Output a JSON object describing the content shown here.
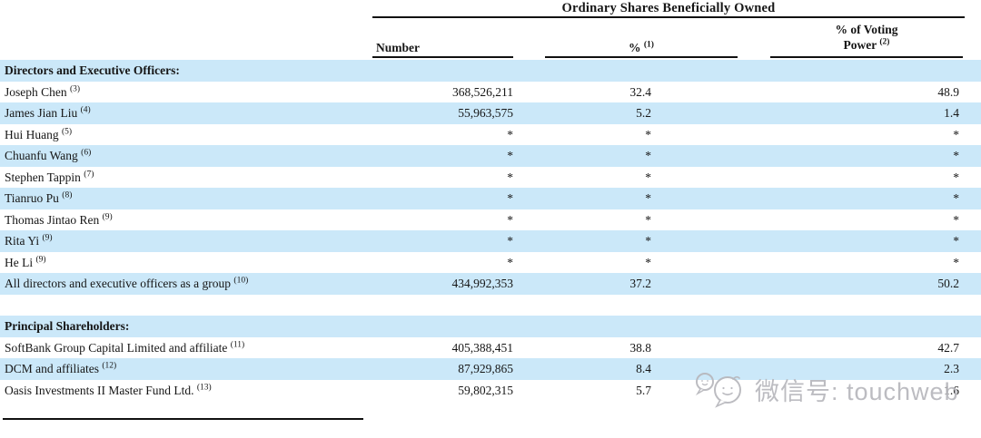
{
  "table": {
    "span_header": "Ordinary Shares Beneficially Owned",
    "columns": {
      "number": {
        "label": "Number"
      },
      "percent": {
        "label": "%",
        "sup": "(1)"
      },
      "voting": {
        "line1": "% of Voting",
        "line2": "Power",
        "sup": "(2)"
      }
    },
    "sections": [
      {
        "heading": "Directors and Executive Officers:",
        "rows": [
          {
            "name": "Joseph Chen",
            "sup": "(3)",
            "number": "368,526,211",
            "pct": "32.4",
            "voting": "48.9"
          },
          {
            "name": "James Jian Liu",
            "sup": "(4)",
            "number": "55,963,575",
            "pct": "5.2",
            "voting": "1.4"
          },
          {
            "name": "Hui Huang",
            "sup": "(5)",
            "number": "*",
            "pct": "*",
            "voting": "*"
          },
          {
            "name": "Chuanfu Wang",
            "sup": "(6)",
            "number": "*",
            "pct": "*",
            "voting": "*"
          },
          {
            "name": "Stephen Tappin",
            "sup": "(7)",
            "number": "*",
            "pct": "*",
            "voting": "*"
          },
          {
            "name": "Tianruo Pu",
            "sup": "(8)",
            "number": "*",
            "pct": "*",
            "voting": "*"
          },
          {
            "name": "Thomas Jintao Ren",
            "sup": "(9)",
            "number": "*",
            "pct": "*",
            "voting": "*"
          },
          {
            "name": "Rita Yi",
            "sup": "(9)",
            "number": "*",
            "pct": "*",
            "voting": "*"
          },
          {
            "name": "He Li",
            "sup": "(9)",
            "number": "*",
            "pct": "*",
            "voting": "*"
          },
          {
            "name": "All directors and executive officers as a group",
            "sup": "(10)",
            "number": "434,992,353",
            "pct": "37.2",
            "voting": "50.2"
          }
        ]
      },
      {
        "heading": "Principal Shareholders:",
        "rows": [
          {
            "name": "SoftBank Group Capital Limited and affiliate",
            "sup": "(11)",
            "number": "405,388,451",
            "pct": "38.8",
            "voting": "42.7"
          },
          {
            "name": "DCM and affiliates",
            "sup": "(12)",
            "number": "87,929,865",
            "pct": "8.4",
            "voting": "2.3"
          },
          {
            "name": "Oasis Investments II Master Fund Ltd.",
            "sup": "(13)",
            "number": "59,802,315",
            "pct": "5.7",
            "voting": "1.6"
          }
        ]
      }
    ]
  },
  "watermark": {
    "text": "微信号: touchweb",
    "icon": "wechat-chat-bubbles-icon"
  },
  "colors": {
    "row_alt": "#cbe8f9",
    "text": "#161616",
    "rule": "#111111",
    "watermark": "#b7b7bc"
  }
}
